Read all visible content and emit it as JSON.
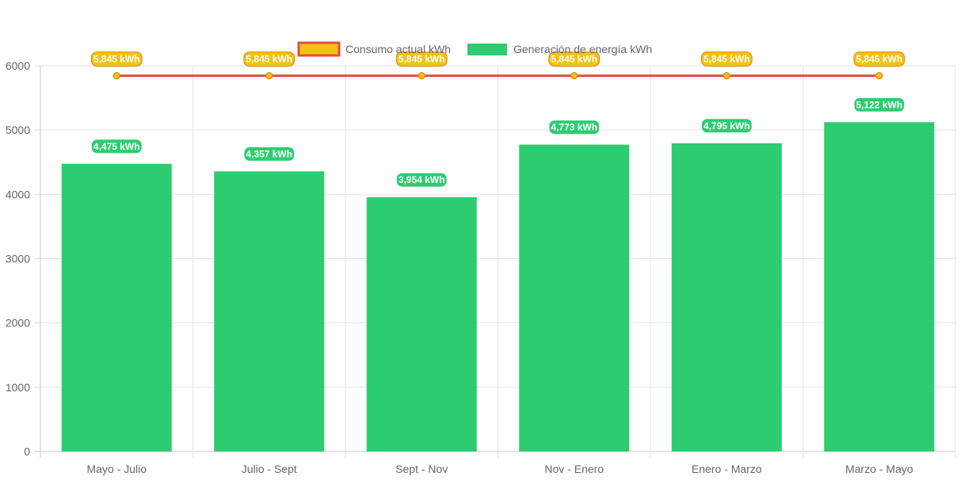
{
  "chart_data": {
    "type": "bar",
    "categories": [
      "Mayo - Julio",
      "Julio - Sept",
      "Sept - Nov",
      "Nov - Enero",
      "Enero - Marzo",
      "Marzo - Mayo"
    ],
    "series": [
      {
        "name": "Consumo actual kWh",
        "type": "line",
        "values": [
          5845,
          5845,
          5845,
          5845,
          5845,
          5845
        ],
        "labels": [
          "5,845 kWh",
          "5,845 kWh",
          "5,845 kWh",
          "5,845 kWh",
          "5,845 kWh",
          "5,845 kWh"
        ],
        "color": "#e74c3c",
        "fill": "#f1c40f"
      },
      {
        "name": "Generación de energía kWh",
        "type": "bar",
        "values": [
          4475,
          4357,
          3954,
          4773,
          4795,
          5122
        ],
        "labels": [
          "4,475 kWh",
          "4,357 kWh",
          "3,954 kWh",
          "4,773 kWh",
          "4,795 kWh",
          "5,122 kWh"
        ],
        "color": "#2ecc71"
      }
    ],
    "yticks": [
      "0",
      "1000",
      "2000",
      "3000",
      "4000",
      "5000",
      "6000"
    ],
    "ylim": [
      0,
      6000
    ],
    "grid": true,
    "legend": "top-center"
  }
}
